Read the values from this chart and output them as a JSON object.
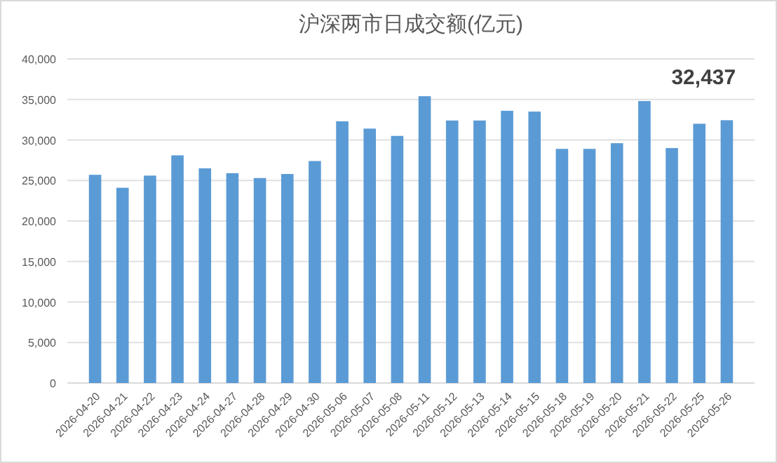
{
  "chart_data": {
    "type": "bar",
    "title": "沪深两市日成交额(亿元)",
    "categories": [
      "2026-04-20",
      "2026-04-21",
      "2026-04-22",
      "2026-04-23",
      "2026-04-24",
      "2026-04-27",
      "2026-04-28",
      "2026-04-29",
      "2026-04-30",
      "2026-05-06",
      "2026-05-07",
      "2026-05-08",
      "2026-05-11",
      "2026-05-12",
      "2026-05-13",
      "2026-05-14",
      "2026-05-15",
      "2026-05-18",
      "2026-05-19",
      "2026-05-20",
      "2026-05-21",
      "2026-05-22",
      "2026-05-25",
      "2026-05-26"
    ],
    "values": [
      25700,
      24100,
      25600,
      28100,
      26500,
      25900,
      25300,
      25800,
      27400,
      32300,
      31400,
      30500,
      35400,
      32400,
      32400,
      33600,
      33500,
      28900,
      28900,
      29600,
      34800,
      29000,
      32000,
      32437
    ],
    "value_labels": [
      null,
      null,
      null,
      null,
      null,
      null,
      null,
      null,
      null,
      null,
      null,
      null,
      null,
      null,
      null,
      null,
      null,
      null,
      null,
      null,
      null,
      null,
      null,
      "32,437"
    ],
    "color": "#5b9bd5",
    "ylim": [
      0,
      40000
    ],
    "yticks": [
      0,
      {
        "value": 5000,
        "label": "5,000"
      },
      {
        "value": 10000,
        "label": "10,000"
      },
      {
        "value": 15000,
        "label": "15,000"
      },
      {
        "value": 20000,
        "label": "20,000"
      },
      {
        "value": 25000,
        "label": "25,000"
      },
      {
        "value": 30000,
        "label": "30,000"
      },
      {
        "value": 35000,
        "label": "35,000"
      },
      {
        "value": 40000,
        "label": "40,000"
      }
    ],
    "grid": "y"
  }
}
